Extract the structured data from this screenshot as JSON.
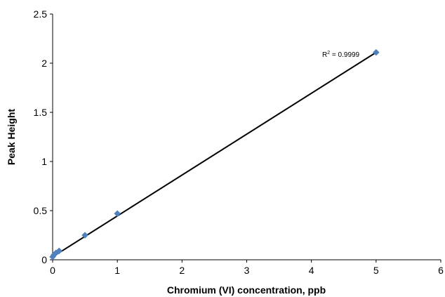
{
  "chart_data": {
    "type": "scatter",
    "title": "",
    "xlabel": "Chromium (VI) concentration, ppb",
    "ylabel": "Peak Height",
    "xlim": [
      0,
      6
    ],
    "ylim": [
      0,
      2.5
    ],
    "x_ticks": [
      "0",
      "1",
      "2",
      "3",
      "4",
      "5",
      "6"
    ],
    "y_ticks": [
      "0",
      "0.5",
      "1",
      "1.5",
      "2",
      "2.5"
    ],
    "grid": false,
    "legend": "none",
    "marker": "diamond",
    "marker_color": "#4F81BD",
    "trendline_color": "#000000",
    "series": [
      {
        "x": [
          0,
          0.02,
          0.05,
          0.1,
          0.5,
          1,
          5
        ],
        "y": [
          0.03,
          0.05,
          0.07,
          0.09,
          0.25,
          0.47,
          2.11
        ]
      }
    ],
    "trendline": {
      "type": "linear",
      "x": [
        0,
        5
      ],
      "y": [
        0.03,
        2.11
      ]
    },
    "annotation": {
      "r2_prefix": "R",
      "r2_superscript": "2",
      "r2_value": " = 0.9999"
    }
  }
}
